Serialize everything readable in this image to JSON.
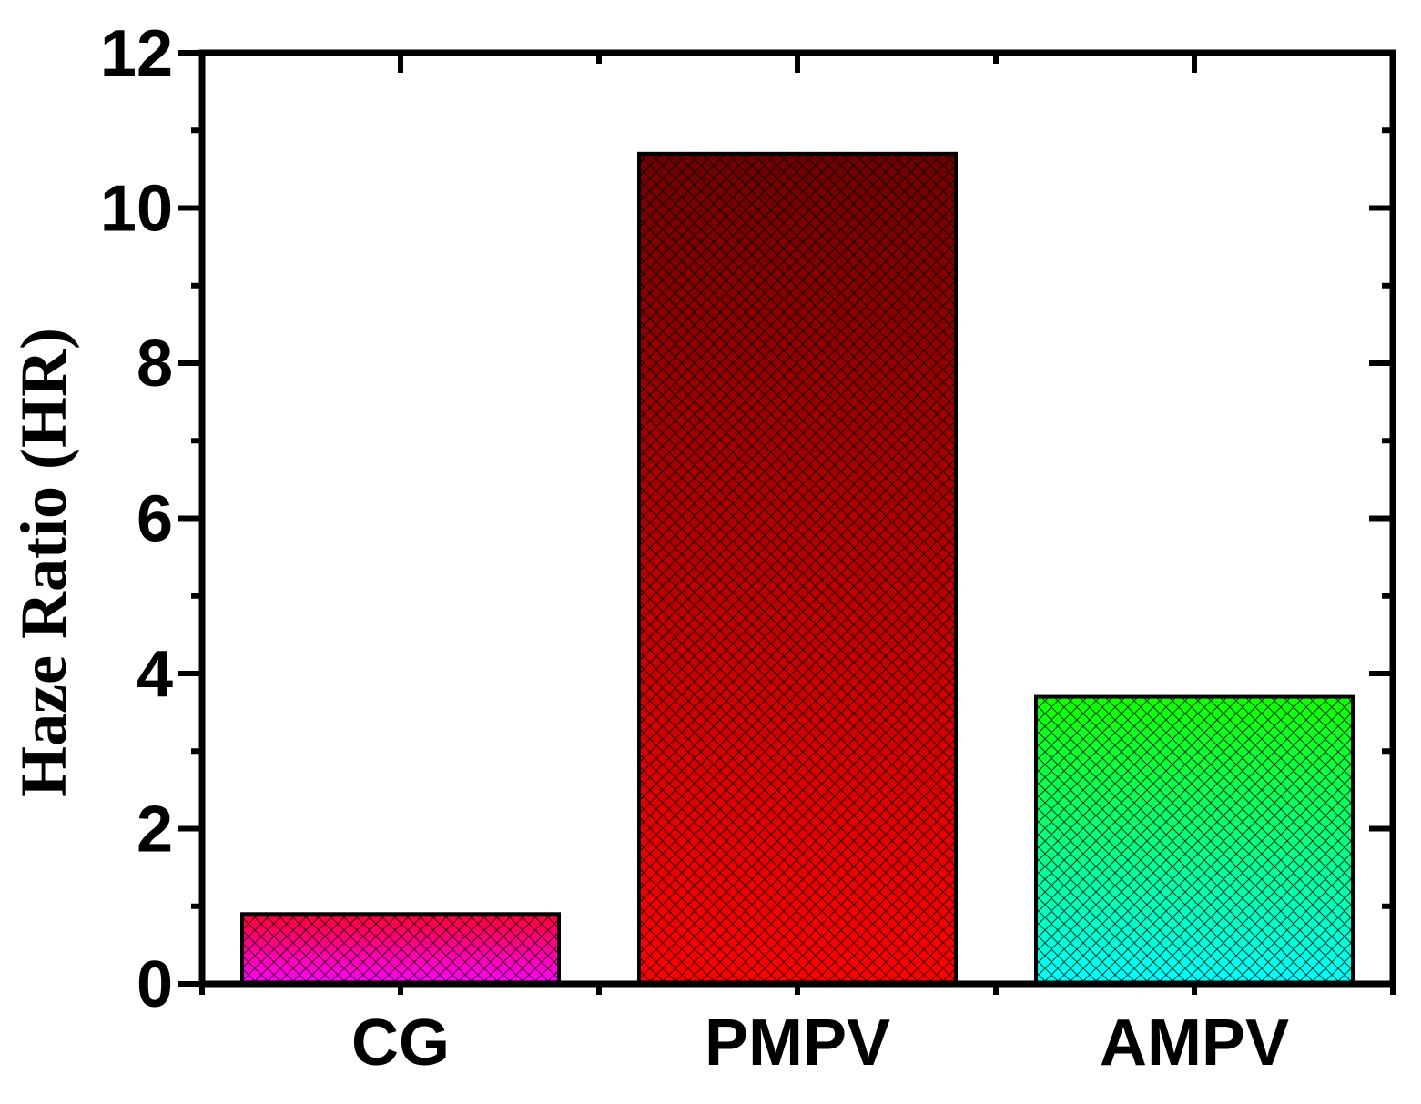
{
  "chart_data": {
    "type": "bar",
    "categories": [
      "CG",
      "PMPV",
      "AMPV"
    ],
    "values": [
      0.9,
      10.7,
      3.7
    ],
    "title": "",
    "xlabel": "",
    "ylabel": "Haze Ratio (HR)",
    "ylim": [
      0,
      12
    ],
    "yticks": [
      0,
      2,
      4,
      6,
      8,
      10,
      12
    ],
    "grid": false,
    "legend": "none",
    "bar_gradients": [
      {
        "top": "#ff0033",
        "bottom": "#ff00ff"
      },
      {
        "top": "#6e0000",
        "bottom": "#ff0000"
      },
      {
        "top": "#11ff00",
        "bottom": "#00ffff"
      }
    ],
    "bar_pattern": "crosshatch",
    "outline_color": "#000000"
  }
}
